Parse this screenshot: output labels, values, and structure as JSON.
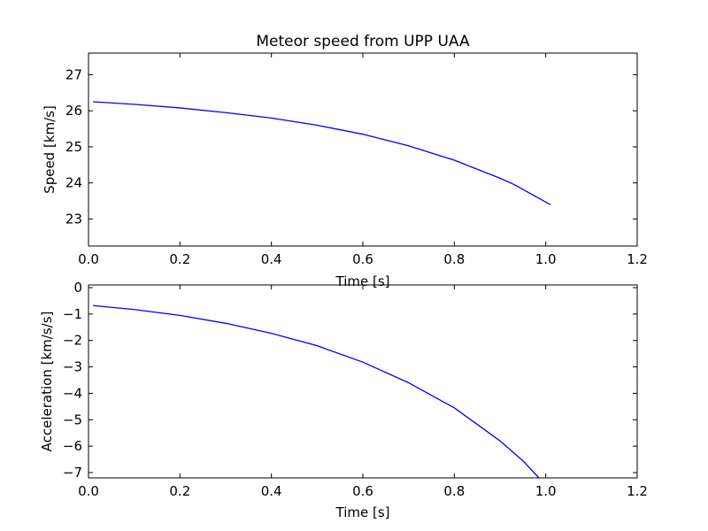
{
  "chart_data": [
    {
      "type": "line",
      "title": "Meteor speed from  UPP UAA",
      "xlabel": "Time [s]",
      "ylabel": "Speed [km/s]",
      "xlim": [
        0.0,
        1.2
      ],
      "ylim": [
        22.25,
        27.6
      ],
      "xticks": [
        0.0,
        0.2,
        0.4,
        0.6,
        0.8,
        1.0,
        1.2
      ],
      "xtick_labels": [
        "0.0",
        "0.2",
        "0.4",
        "0.6",
        "0.8",
        "1.0",
        "1.2"
      ],
      "yticks": [
        23,
        24,
        25,
        26,
        27
      ],
      "ytick_labels": [
        "23",
        "24",
        "25",
        "26",
        "27"
      ],
      "grid": false,
      "color": "#0000ff",
      "series": [
        {
          "x": [
            0.01,
            0.1,
            0.2,
            0.3,
            0.4,
            0.5,
            0.6,
            0.7,
            0.8,
            0.9,
            0.93,
            1.01
          ],
          "values": [
            26.25,
            26.18,
            26.08,
            25.95,
            25.8,
            25.6,
            25.35,
            25.03,
            24.63,
            24.13,
            23.96,
            23.4
          ]
        }
      ]
    },
    {
      "type": "line",
      "title": "",
      "xlabel": "Time [s]",
      "ylabel": "Acceleration [km/s/s]",
      "xlim": [
        0.0,
        1.2
      ],
      "ylim": [
        -7.2,
        0.1
      ],
      "xticks": [
        0.0,
        0.2,
        0.4,
        0.6,
        0.8,
        1.0,
        1.2
      ],
      "xtick_labels": [
        "0.0",
        "0.2",
        "0.4",
        "0.6",
        "0.8",
        "1.0",
        "1.2"
      ],
      "yticks": [
        0,
        -1,
        -2,
        -3,
        -4,
        -5,
        -6,
        -7
      ],
      "ytick_labels": [
        "0",
        "−1",
        "−2",
        "−3",
        "−4",
        "−5",
        "−6",
        "−7"
      ],
      "grid": false,
      "color": "#0000ff",
      "series": [
        {
          "x": [
            0.01,
            0.1,
            0.2,
            0.3,
            0.4,
            0.5,
            0.6,
            0.7,
            0.8,
            0.9,
            0.95,
            0.985
          ],
          "values": [
            -0.68,
            -0.83,
            -1.05,
            -1.35,
            -1.73,
            -2.2,
            -2.82,
            -3.6,
            -4.55,
            -5.8,
            -6.55,
            -7.2
          ]
        }
      ]
    }
  ]
}
